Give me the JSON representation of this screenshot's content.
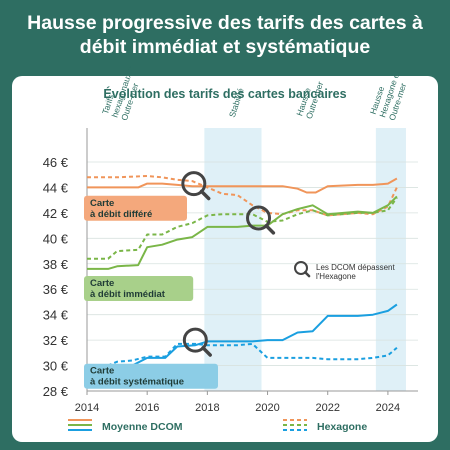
{
  "title": "Hausse progressive des tarifs des cartes à débit immédiat et systématique",
  "chart_data": {
    "type": "line",
    "subtitle": "Évolution des tarifs des cartes bancaires",
    "y_ticks": [
      "46 €",
      "44 €",
      "42 €",
      "40 €",
      "38 €",
      "36 €",
      "34 €",
      "32 €",
      "30 €",
      "28 €"
    ],
    "x_ticks": [
      "2014",
      "2016",
      "2018",
      "2020",
      "2022",
      "2024"
    ],
    "ylim": [
      28,
      46
    ],
    "xlim": [
      2014,
      2025
    ],
    "shaded_periods": [
      [
        2017.9,
        2019.8
      ],
      [
        2023.6,
        2024.6
      ]
    ],
    "annotations": [
      {
        "text": "Tarifs hexagonaux > Outre-mer",
        "x": 2015,
        "color": "#2e6e62"
      },
      {
        "text": "Stabilité",
        "x": 2018.9,
        "color": "#2e6e62"
      },
      {
        "text": "Hausse Outre-mer",
        "x": 2021.3,
        "color": "#2e6e62"
      },
      {
        "text": "Hausse Hexagone et Outre-mer",
        "x": 2023.9,
        "color": "#2e6e62"
      }
    ],
    "series_labels": [
      {
        "text": "Carte à débit différé",
        "color": "#f4a87c",
        "y": 42.4
      },
      {
        "text": "Carte à débit immédiat",
        "color": "#a8d08a",
        "y": 36.1
      },
      {
        "text": "Carte à débit systématique",
        "color": "#8ccde6",
        "y": 29.2
      }
    ],
    "marker_note": "Les DCOM dépassent l'Hexagone",
    "markers": [
      {
        "x": 2017.55,
        "y": 44.3
      },
      {
        "x": 2019.7,
        "y": 41.6
      },
      {
        "x": 2017.6,
        "y": 32.0
      }
    ],
    "legend": {
      "dcom": "Moyenne DCOM",
      "hexagone": "Hexagone"
    },
    "colors": {
      "orange": "#f0955a",
      "green": "#7ab648",
      "blue": "#1a9fe0",
      "shade": "#dff0f7",
      "text": "#2e6e62"
    },
    "series": [
      {
        "group": "orange",
        "style": "solid",
        "points": [
          [
            2014,
            44
          ],
          [
            2015,
            44
          ],
          [
            2015.7,
            44
          ],
          [
            2016,
            44.3
          ],
          [
            2016.5,
            44.3
          ],
          [
            2017,
            44.2
          ],
          [
            2017.5,
            44.1
          ],
          [
            2018,
            44.1
          ],
          [
            2019,
            44.1
          ],
          [
            2020,
            44.1
          ],
          [
            2020.5,
            44.1
          ],
          [
            2021,
            43.9
          ],
          [
            2021.3,
            43.6
          ],
          [
            2021.6,
            43.6
          ],
          [
            2022,
            44.1
          ],
          [
            2023,
            44.2
          ],
          [
            2023.5,
            44.2
          ],
          [
            2024,
            44.3
          ],
          [
            2024.3,
            44.7
          ]
        ]
      },
      {
        "group": "orange",
        "style": "dashed",
        "points": [
          [
            2014,
            44.8
          ],
          [
            2015,
            44.8
          ],
          [
            2016,
            44.9
          ],
          [
            2016.5,
            44.8
          ],
          [
            2017,
            44.6
          ],
          [
            2017.5,
            44.5
          ],
          [
            2018,
            44.0
          ],
          [
            2018.5,
            43.5
          ],
          [
            2019,
            43.4
          ],
          [
            2019.5,
            42.6
          ],
          [
            2020,
            42.0
          ],
          [
            2020.5,
            41.9
          ],
          [
            2021,
            42.2
          ],
          [
            2021.5,
            42.2
          ],
          [
            2022,
            41.8
          ],
          [
            2023,
            42.0
          ],
          [
            2023.5,
            41.9
          ],
          [
            2024,
            42.5
          ],
          [
            2024.3,
            44.0
          ]
        ]
      },
      {
        "group": "green",
        "style": "solid",
        "points": [
          [
            2014,
            37.6
          ],
          [
            2014.7,
            37.6
          ],
          [
            2015,
            37.8
          ],
          [
            2015.7,
            37.9
          ],
          [
            2016,
            39.3
          ],
          [
            2016.5,
            39.5
          ],
          [
            2017,
            39.9
          ],
          [
            2017.5,
            40.1
          ],
          [
            2018,
            40.9
          ],
          [
            2018.5,
            40.9
          ],
          [
            2019,
            40.9
          ],
          [
            2019.5,
            41.0
          ],
          [
            2020,
            41.0
          ],
          [
            2020.5,
            41.9
          ],
          [
            2021,
            42.3
          ],
          [
            2021.5,
            42.6
          ],
          [
            2022,
            41.9
          ],
          [
            2023,
            42.1
          ],
          [
            2023.5,
            42.0
          ],
          [
            2024,
            42.6
          ],
          [
            2024.3,
            43.3
          ]
        ]
      },
      {
        "group": "green",
        "style": "dashed",
        "points": [
          [
            2014,
            38.4
          ],
          [
            2014.7,
            38.4
          ],
          [
            2015,
            39.0
          ],
          [
            2015.7,
            39.1
          ],
          [
            2016,
            40.3
          ],
          [
            2016.5,
            40.3
          ],
          [
            2017,
            40.9
          ],
          [
            2017.5,
            41.2
          ],
          [
            2018,
            41.8
          ],
          [
            2018.5,
            41.9
          ],
          [
            2019,
            41.9
          ],
          [
            2019.5,
            41.9
          ],
          [
            2020,
            41.3
          ],
          [
            2020.5,
            41.4
          ],
          [
            2021,
            41.9
          ],
          [
            2021.5,
            42.2
          ],
          [
            2022,
            41.8
          ],
          [
            2023,
            42.0
          ],
          [
            2023.5,
            42.0
          ],
          [
            2024,
            42.2
          ],
          [
            2024.3,
            43.2
          ]
        ]
      },
      {
        "group": "blue",
        "style": "solid",
        "points": [
          [
            2014,
            29.8
          ],
          [
            2014.6,
            29.8
          ],
          [
            2015,
            29.9
          ],
          [
            2015.5,
            30.0
          ],
          [
            2016,
            30.6
          ],
          [
            2016.6,
            30.6
          ],
          [
            2017,
            31.5
          ],
          [
            2017.6,
            31.6
          ],
          [
            2018,
            31.9
          ],
          [
            2019,
            31.9
          ],
          [
            2019.5,
            31.9
          ],
          [
            2020,
            32.0
          ],
          [
            2020.5,
            32.0
          ],
          [
            2021,
            32.6
          ],
          [
            2021.5,
            32.7
          ],
          [
            2022,
            33.9
          ],
          [
            2023,
            33.9
          ],
          [
            2023.5,
            34.0
          ],
          [
            2024,
            34.3
          ],
          [
            2024.3,
            34.8
          ]
        ]
      },
      {
        "group": "blue",
        "style": "dashed",
        "points": [
          [
            2014,
            29.9
          ],
          [
            2014.6,
            29.9
          ],
          [
            2015,
            30.3
          ],
          [
            2015.5,
            30.4
          ],
          [
            2016,
            30.7
          ],
          [
            2016.6,
            30.7
          ],
          [
            2017,
            31.7
          ],
          [
            2017.6,
            31.7
          ],
          [
            2018,
            31.6
          ],
          [
            2019,
            31.6
          ],
          [
            2019.5,
            31.7
          ],
          [
            2020,
            30.6
          ],
          [
            2021,
            30.6
          ],
          [
            2021.5,
            30.6
          ],
          [
            2022,
            30.5
          ],
          [
            2023,
            30.5
          ],
          [
            2023.5,
            30.6
          ],
          [
            2024,
            30.8
          ],
          [
            2024.3,
            31.4
          ]
        ]
      }
    ]
  }
}
